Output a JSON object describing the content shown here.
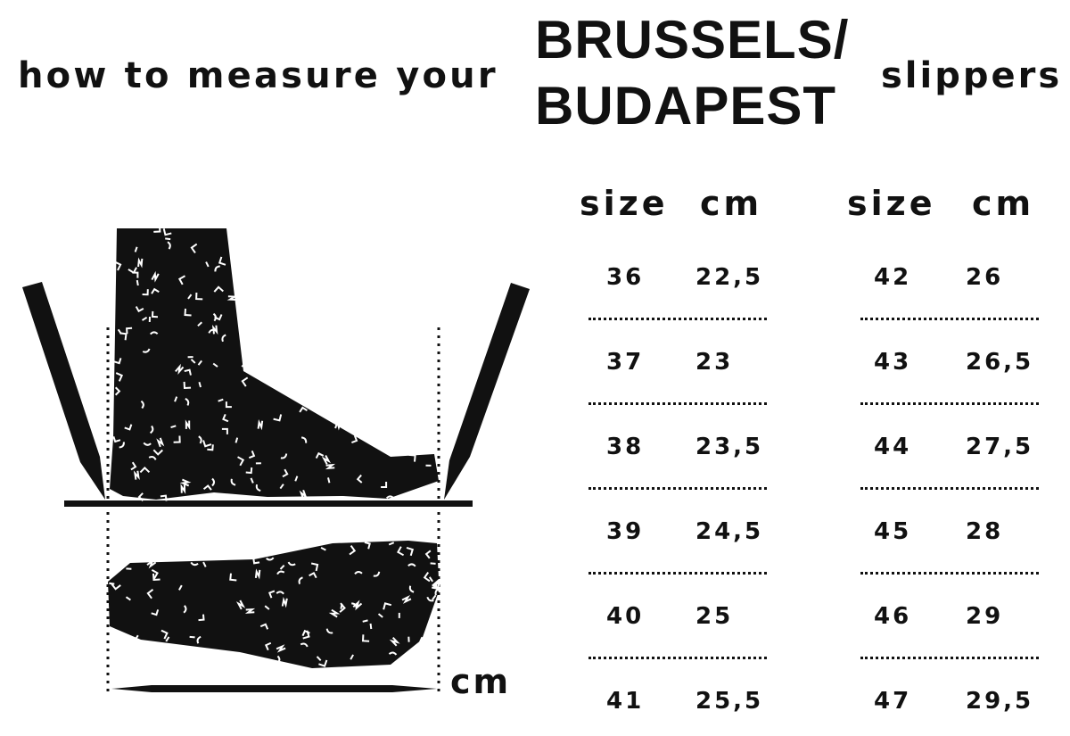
{
  "title": {
    "prefix": "how to measure your",
    "brand_line1": "BRUSSELS/",
    "brand_line2": "BUDAPEST",
    "suffix": "slippers"
  },
  "illustration": {
    "unit_label": "cm",
    "icons": [
      "foot-side-view",
      "foot-top-view",
      "pencil-left",
      "pencil-right",
      "measure-line"
    ]
  },
  "size_table": {
    "headers": {
      "size": "size",
      "cm": "cm"
    },
    "columns": [
      {
        "rows": [
          {
            "size": "36",
            "cm": "22,5"
          },
          {
            "size": "37",
            "cm": "23"
          },
          {
            "size": "38",
            "cm": "23,5"
          },
          {
            "size": "39",
            "cm": "24,5"
          },
          {
            "size": "40",
            "cm": "25"
          },
          {
            "size": "41",
            "cm": "25,5"
          }
        ]
      },
      {
        "rows": [
          {
            "size": "42",
            "cm": "26"
          },
          {
            "size": "43",
            "cm": "26,5"
          },
          {
            "size": "44",
            "cm": "27,5"
          },
          {
            "size": "45",
            "cm": "28"
          },
          {
            "size": "46",
            "cm": "29"
          },
          {
            "size": "47",
            "cm": "29,5"
          }
        ]
      }
    ]
  }
}
